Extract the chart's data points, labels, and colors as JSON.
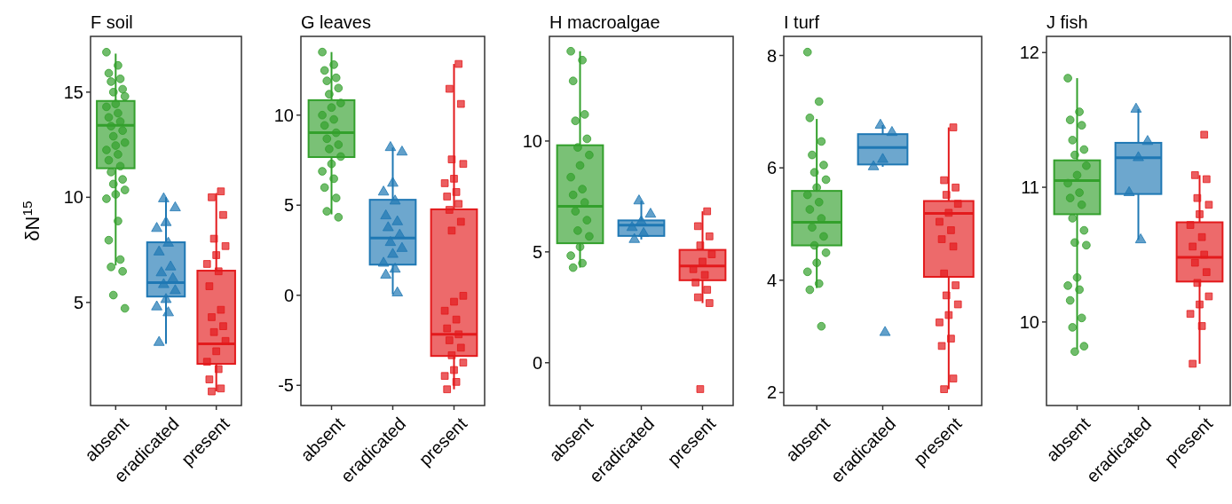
{
  "chart_data": [
    {
      "type": "box",
      "title": "F soil",
      "ylabel": "δN$^{15}$",
      "categories": [
        "absent",
        "eradicated",
        "present"
      ],
      "colors": [
        "#33a02c",
        "#1f78b4",
        "#e31a1c"
      ],
      "ylim": [
        0.1,
        17.65
      ],
      "yticks": [
        5,
        10,
        15
      ],
      "boxes": [
        {
          "low": 6.76,
          "q1": 11.38,
          "median": 13.42,
          "q3": 14.58,
          "high": 16.83
        },
        {
          "low": 3.03,
          "q1": 5.28,
          "median": 5.94,
          "q3": 7.86,
          "high": 10.0
        },
        {
          "low": 0.77,
          "q1": 2.08,
          "median": 3.03,
          "q3": 6.51,
          "high": 10.2
        }
      ],
      "series": [
        {
          "type": "scatter",
          "marker": "circle",
          "color": "#33a02c",
          "x": [
            "absent",
            "absent",
            "absent",
            "absent",
            "absent",
            "absent",
            "absent",
            "absent",
            "absent",
            "absent",
            "absent",
            "absent",
            "absent",
            "absent",
            "absent",
            "absent",
            "absent",
            "absent",
            "absent",
            "absent",
            "absent",
            "absent",
            "absent",
            "absent",
            "absent",
            "absent",
            "absent",
            "absent",
            "absent",
            "absent",
            "absent",
            "absent",
            "absent",
            "absent",
            "absent"
          ],
          "values": [
            16.9,
            16.27,
            15.9,
            15.63,
            15.5,
            15.14,
            15.0,
            14.8,
            14.44,
            14.3,
            14.0,
            13.8,
            13.6,
            13.38,
            13.17,
            12.9,
            12.6,
            12.46,
            12.25,
            12.04,
            11.76,
            11.48,
            11.2,
            10.85,
            10.63,
            10.35,
            10.14,
            9.93,
            8.87,
            7.96,
            7.04,
            6.69,
            6.48,
            5.35,
            4.72
          ]
        },
        {
          "type": "scatter",
          "marker": "triangle",
          "color": "#1f78b4",
          "x": [
            "eradicated",
            "eradicated",
            "eradicated",
            "eradicated",
            "eradicated",
            "eradicated",
            "eradicated",
            "eradicated",
            "eradicated",
            "eradicated",
            "eradicated",
            "eradicated",
            "eradicated",
            "eradicated",
            "eradicated"
          ],
          "values": [
            9.93,
            9.5,
            8.8,
            8.52,
            7.82,
            7.4,
            6.69,
            6.41,
            6.13,
            5.85,
            5.56,
            5.14,
            4.79,
            4.51,
            3.1
          ]
        },
        {
          "type": "scatter",
          "marker": "square",
          "color": "#e31a1c",
          "x": [
            "present",
            "present",
            "present",
            "present",
            "present",
            "present",
            "present",
            "present",
            "present",
            "present",
            "present",
            "present",
            "present",
            "present",
            "present",
            "present",
            "present",
            "present",
            "present",
            "present"
          ],
          "values": [
            10.28,
            10.0,
            9.16,
            8.03,
            7.68,
            7.25,
            6.83,
            6.48,
            5.77,
            4.65,
            4.3,
            3.87,
            3.59,
            3.17,
            2.68,
            2.18,
            1.83,
            1.34,
            0.91,
            0.77
          ]
        }
      ]
    },
    {
      "type": "box",
      "title": "G leaves",
      "categories": [
        "absent",
        "eradicated",
        "present"
      ],
      "colors": [
        "#33a02c",
        "#1f78b4",
        "#e31a1c"
      ],
      "ylim": [
        -6.12,
        14.37
      ],
      "yticks": [
        -5,
        0,
        5,
        10
      ],
      "boxes": [
        {
          "low": 4.49,
          "q1": 7.67,
          "median": 9.02,
          "q3": 10.83,
          "high": 13.5
        },
        {
          "low": 0.05,
          "q1": 1.7,
          "median": 3.18,
          "q3": 5.3,
          "high": 8.2
        },
        {
          "low": -5.22,
          "q1": -3.37,
          "median": -2.17,
          "q3": 4.77,
          "high": 12.84
        }
      ],
      "series": [
        {
          "type": "scatter",
          "marker": "circle",
          "color": "#33a02c",
          "x": [
            "absent",
            "absent",
            "absent",
            "absent",
            "absent",
            "absent",
            "absent",
            "absent",
            "absent",
            "absent",
            "absent",
            "absent",
            "absent",
            "absent",
            "absent",
            "absent",
            "absent",
            "absent",
            "absent",
            "absent",
            "absent",
            "absent",
            "absent",
            "absent"
          ],
          "values": [
            13.5,
            12.8,
            12.48,
            12.07,
            11.9,
            11.5,
            11.16,
            10.67,
            10.42,
            10.0,
            9.76,
            9.43,
            9.02,
            8.69,
            8.36,
            8.12,
            7.7,
            7.29,
            6.88,
            6.47,
            5.98,
            5.4,
            4.66,
            4.33
          ]
        },
        {
          "type": "scatter",
          "marker": "triangle",
          "color": "#1f78b4",
          "x": [
            "eradicated",
            "eradicated",
            "eradicated",
            "eradicated",
            "eradicated",
            "eradicated",
            "eradicated",
            "eradicated",
            "eradicated",
            "eradicated",
            "eradicated",
            "eradicated",
            "eradicated",
            "eradicated",
            "eradicated",
            "eradicated"
          ],
          "values": [
            8.2,
            7.95,
            6.22,
            5.73,
            5.23,
            4.41,
            4.08,
            3.75,
            3.34,
            2.93,
            2.6,
            2.27,
            1.78,
            1.45,
            1.12,
            0.13
          ]
        },
        {
          "type": "scatter",
          "marker": "square",
          "color": "#e31a1c",
          "x": [
            "present",
            "present",
            "present",
            "present",
            "present",
            "present",
            "present",
            "present",
            "present",
            "present",
            "present",
            "present",
            "present",
            "present",
            "present",
            "present",
            "present",
            "present",
            "present",
            "present",
            "present",
            "present",
            "present",
            "present",
            "present",
            "present",
            "present"
          ],
          "values": [
            12.84,
            11.46,
            10.62,
            7.54,
            7.29,
            6.47,
            6.22,
            5.73,
            5.48,
            5.07,
            4.74,
            4.08,
            3.59,
            -0.03,
            -0.36,
            -0.86,
            -1.35,
            -1.84,
            -2.17,
            -2.5,
            -2.91,
            -3.33,
            -3.74,
            -4.15,
            -4.48,
            -4.81,
            -5.22
          ]
        }
      ]
    },
    {
      "type": "box",
      "title": "H macroalgae",
      "categories": [
        "absent",
        "eradicated",
        "present"
      ],
      "colors": [
        "#33a02c",
        "#1f78b4",
        "#e31a1c"
      ],
      "ylim": [
        -1.93,
        14.72
      ],
      "yticks": [
        0,
        5,
        10
      ],
      "boxes": [
        {
          "low": 4.29,
          "q1": 5.39,
          "median": 7.06,
          "q3": 9.81,
          "high": 14.05
        },
        {
          "low": 5.56,
          "q1": 5.72,
          "median": 6.2,
          "q3": 6.42,
          "high": 7.3
        },
        {
          "low": 2.69,
          "q1": 3.72,
          "median": 4.36,
          "q3": 5.09,
          "high": 6.83
        }
      ],
      "series": [
        {
          "type": "scatter",
          "marker": "circle",
          "color": "#33a02c",
          "x": [
            "absent",
            "absent",
            "absent",
            "absent",
            "absent",
            "absent",
            "absent",
            "absent",
            "absent",
            "absent",
            "absent",
            "absent",
            "absent",
            "absent",
            "absent",
            "absent",
            "absent",
            "absent",
            "absent",
            "absent",
            "absent"
          ],
          "values": [
            14.05,
            13.65,
            12.71,
            11.2,
            10.91,
            10.1,
            9.71,
            9.37,
            8.9,
            8.37,
            7.83,
            7.57,
            7.23,
            6.83,
            6.43,
            5.96,
            5.7,
            5.23,
            4.83,
            4.49,
            4.29
          ]
        },
        {
          "type": "scatter",
          "marker": "triangle",
          "color": "#1f78b4",
          "x": [
            "eradicated",
            "eradicated",
            "eradicated",
            "eradicated",
            "eradicated",
            "eradicated"
          ],
          "values": [
            7.3,
            6.7,
            6.36,
            6.1,
            5.83,
            5.56
          ]
        },
        {
          "type": "scatter",
          "marker": "square",
          "color": "#e31a1c",
          "x": [
            "present",
            "present",
            "present",
            "present",
            "present",
            "present",
            "present",
            "present",
            "present",
            "present",
            "present",
            "present",
            "present"
          ],
          "values": [
            6.83,
            6.16,
            5.7,
            5.29,
            4.89,
            4.56,
            4.22,
            3.96,
            3.62,
            3.29,
            2.95,
            2.69,
            -1.19
          ]
        }
      ]
    },
    {
      "type": "box",
      "title": "I turf",
      "categories": [
        "absent",
        "eradicated",
        "present"
      ],
      "colors": [
        "#33a02c",
        "#1f78b4",
        "#e31a1c"
      ],
      "ylim": [
        1.77,
        8.34
      ],
      "yticks": [
        2,
        4,
        6,
        8
      ],
      "boxes": [
        {
          "low": 3.86,
          "q1": 4.62,
          "median": 5.03,
          "q3": 5.59,
          "high": 6.87
        },
        {
          "low": 6.02,
          "q1": 6.06,
          "median": 6.36,
          "q3": 6.6,
          "high": 6.76
        },
        {
          "low": 2.06,
          "q1": 4.06,
          "median": 5.19,
          "q3": 5.41,
          "high": 6.72
        }
      ],
      "series": [
        {
          "type": "scatter",
          "marker": "circle",
          "color": "#33a02c",
          "x": [
            "absent",
            "absent",
            "absent",
            "absent",
            "absent",
            "absent",
            "absent",
            "absent",
            "absent",
            "absent",
            "absent",
            "absent",
            "absent",
            "absent",
            "absent",
            "absent",
            "absent",
            "absent",
            "absent",
            "absent",
            "absent",
            "absent"
          ],
          "values": [
            8.06,
            7.18,
            6.89,
            6.47,
            6.23,
            6.05,
            5.92,
            5.79,
            5.65,
            5.52,
            5.39,
            5.26,
            5.1,
            4.94,
            4.78,
            4.62,
            4.49,
            4.31,
            4.15,
            3.94,
            3.83,
            3.18
          ]
        },
        {
          "type": "scatter",
          "marker": "triangle",
          "color": "#1f78b4",
          "x": [
            "eradicated",
            "eradicated",
            "eradicated",
            "eradicated",
            "eradicated"
          ],
          "values": [
            6.76,
            6.63,
            6.15,
            6.02,
            3.07
          ]
        },
        {
          "type": "scatter",
          "marker": "square",
          "color": "#e31a1c",
          "x": [
            "present",
            "present",
            "present",
            "present",
            "present",
            "present",
            "present",
            "present",
            "present",
            "present",
            "present",
            "present",
            "present",
            "present",
            "present",
            "present",
            "present",
            "present",
            "present",
            "present"
          ],
          "values": [
            6.72,
            5.78,
            5.65,
            5.52,
            5.36,
            5.2,
            5.04,
            4.89,
            4.73,
            4.6,
            4.12,
            3.91,
            3.73,
            3.57,
            3.38,
            3.25,
            2.96,
            2.83,
            2.25,
            2.06
          ]
        }
      ]
    },
    {
      "type": "box",
      "title": "J fish",
      "categories": [
        "absent",
        "eradicated",
        "present"
      ],
      "colors": [
        "#33a02c",
        "#1f78b4",
        "#e31a1c"
      ],
      "ylim": [
        9.38,
        12.12
      ],
      "yticks": [
        10,
        11,
        12
      ],
      "boxes": [
        {
          "low": 9.8,
          "q1": 10.8,
          "median": 11.05,
          "q3": 11.2,
          "high": 11.81
        },
        {
          "low": 10.61,
          "q1": 10.95,
          "median": 11.22,
          "q3": 11.33,
          "high": 11.58
        },
        {
          "low": 9.69,
          "q1": 10.3,
          "median": 10.48,
          "q3": 10.74,
          "high": 11.09
        }
      ],
      "series": [
        {
          "type": "scatter",
          "marker": "circle",
          "color": "#33a02c",
          "x": [
            "absent",
            "absent",
            "absent",
            "absent",
            "absent",
            "absent",
            "absent",
            "absent",
            "absent",
            "absent",
            "absent",
            "absent",
            "absent",
            "absent",
            "absent",
            "absent",
            "absent",
            "absent",
            "absent",
            "absent",
            "absent",
            "absent",
            "absent",
            "absent",
            "absent"
          ],
          "values": [
            11.81,
            11.56,
            11.5,
            11.46,
            11.35,
            11.28,
            11.24,
            11.16,
            11.09,
            11.03,
            10.96,
            10.92,
            10.87,
            10.77,
            10.68,
            10.59,
            10.57,
            10.33,
            10.27,
            10.24,
            10.16,
            10.03,
            9.96,
            9.82,
            9.78
          ]
        },
        {
          "type": "scatter",
          "marker": "triangle",
          "color": "#1f78b4",
          "x": [
            "eradicated",
            "eradicated",
            "eradicated",
            "eradicated",
            "eradicated"
          ],
          "values": [
            11.58,
            11.34,
            11.22,
            10.96,
            10.61
          ]
        },
        {
          "type": "scatter",
          "marker": "square",
          "color": "#e31a1c",
          "x": [
            "present",
            "present",
            "present",
            "present",
            "present",
            "present",
            "present",
            "present",
            "present",
            "present",
            "present",
            "present",
            "present",
            "present",
            "present",
            "present",
            "present",
            "present"
          ],
          "values": [
            11.39,
            11.09,
            11.06,
            10.92,
            10.87,
            10.8,
            10.72,
            10.63,
            10.56,
            10.5,
            10.44,
            10.37,
            10.29,
            10.19,
            10.13,
            10.06,
            9.97,
            9.69
          ]
        }
      ]
    }
  ]
}
